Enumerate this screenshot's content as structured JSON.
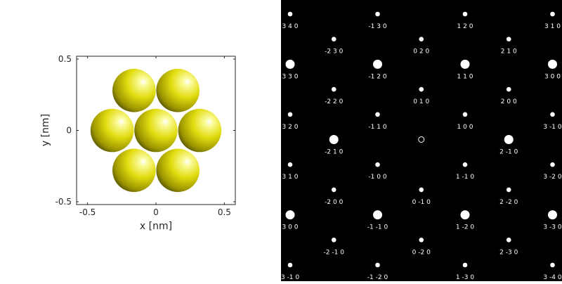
{
  "structure_plot": {
    "xlabel": "x [nm]",
    "ylabel": "y [nm]",
    "xlim": [
      -0.58,
      0.58
    ],
    "ylim": [
      -0.52,
      0.52
    ],
    "x_ticks": [
      -0.5,
      0,
      0.5
    ],
    "x_tick_labels": [
      "-0.5",
      "0",
      "0.5"
    ],
    "y_ticks": [
      -0.5,
      0,
      0.5
    ],
    "y_tick_labels": [
      "-0.5",
      "0",
      "0.5"
    ],
    "atom_color": "#e5e000",
    "atom_radius_nm": 0.158,
    "atoms": [
      {
        "x": -0.16,
        "y": 0.28
      },
      {
        "x": 0.16,
        "y": 0.28
      },
      {
        "x": -0.32,
        "y": 0.0
      },
      {
        "x": 0.0,
        "y": 0.0
      },
      {
        "x": 0.32,
        "y": 0.0
      },
      {
        "x": -0.16,
        "y": -0.28
      },
      {
        "x": 0.16,
        "y": -0.28
      }
    ]
  },
  "diffraction_pattern": {
    "background_color": "#000000",
    "spot_color": "#ffffff",
    "spots": [
      {
        "label": "3 4 0",
        "c": 0,
        "r": 0,
        "size": "small"
      },
      {
        "label": "-1 3 0",
        "c": 1,
        "r": 0,
        "size": "small"
      },
      {
        "label": "1 2 0",
        "c": 2,
        "r": 0,
        "size": "small"
      },
      {
        "label": "3 1 0",
        "c": 3,
        "r": 0,
        "size": "small"
      },
      {
        "label": "-2 3 0",
        "c": 0.5,
        "r": 1,
        "size": "small"
      },
      {
        "label": "0 2 0",
        "c": 1.5,
        "r": 1,
        "size": "small"
      },
      {
        "label": "2 1 0",
        "c": 2.5,
        "r": 1,
        "size": "small"
      },
      {
        "label": "3 3 0",
        "c": 0,
        "r": 2,
        "size": "large"
      },
      {
        "label": "-1 2 0",
        "c": 1,
        "r": 2,
        "size": "large"
      },
      {
        "label": "1 1 0",
        "c": 2,
        "r": 2,
        "size": "large"
      },
      {
        "label": "3 0 0",
        "c": 3,
        "r": 2,
        "size": "large"
      },
      {
        "label": "-2 2 0",
        "c": 0.5,
        "r": 3,
        "size": "small"
      },
      {
        "label": "0 1 0",
        "c": 1.5,
        "r": 3,
        "size": "small"
      },
      {
        "label": "2 0 0",
        "c": 2.5,
        "r": 3,
        "size": "small"
      },
      {
        "label": "3 2 0",
        "c": 0,
        "r": 4,
        "size": "small"
      },
      {
        "label": "-1 1 0",
        "c": 1,
        "r": 4,
        "size": "small"
      },
      {
        "label": "1 0 0",
        "c": 2,
        "r": 4,
        "size": "small"
      },
      {
        "label": "3 -1 0",
        "c": 3,
        "r": 4,
        "size": "small"
      },
      {
        "label": "-2 1 0",
        "c": 0.5,
        "r": 5,
        "size": "large"
      },
      {
        "label": "",
        "c": 1.5,
        "r": 5,
        "size": "center"
      },
      {
        "label": "2 -1 0",
        "c": 2.5,
        "r": 5,
        "size": "large"
      },
      {
        "label": "3 1 0",
        "c": 0,
        "r": 6,
        "size": "small"
      },
      {
        "label": "-1 0 0",
        "c": 1,
        "r": 6,
        "size": "small"
      },
      {
        "label": "1 -1 0",
        "c": 2,
        "r": 6,
        "size": "small"
      },
      {
        "label": "3 -2 0",
        "c": 3,
        "r": 6,
        "size": "small"
      },
      {
        "label": "-2 0 0",
        "c": 0.5,
        "r": 7,
        "size": "small"
      },
      {
        "label": "0 -1 0",
        "c": 1.5,
        "r": 7,
        "size": "small"
      },
      {
        "label": "2 -2 0",
        "c": 2.5,
        "r": 7,
        "size": "small"
      },
      {
        "label": "3 0 0",
        "c": 0,
        "r": 8,
        "size": "large"
      },
      {
        "label": "-1 -1 0",
        "c": 1,
        "r": 8,
        "size": "large"
      },
      {
        "label": "1 -2 0",
        "c": 2,
        "r": 8,
        "size": "large"
      },
      {
        "label": "3 -3 0",
        "c": 3,
        "r": 8,
        "size": "large"
      },
      {
        "label": "-2 -1 0",
        "c": 0.5,
        "r": 9,
        "size": "small"
      },
      {
        "label": "0 -2 0",
        "c": 1.5,
        "r": 9,
        "size": "small"
      },
      {
        "label": "2 -3 0",
        "c": 2.5,
        "r": 9,
        "size": "small"
      },
      {
        "label": "3 -1 0",
        "c": 0,
        "r": 10,
        "size": "small"
      },
      {
        "label": "-1 -2 0",
        "c": 1,
        "r": 10,
        "size": "small"
      },
      {
        "label": "1 -3 0",
        "c": 2,
        "r": 10,
        "size": "small"
      },
      {
        "label": "3 -4 0",
        "c": 3,
        "r": 10,
        "size": "small"
      }
    ]
  }
}
